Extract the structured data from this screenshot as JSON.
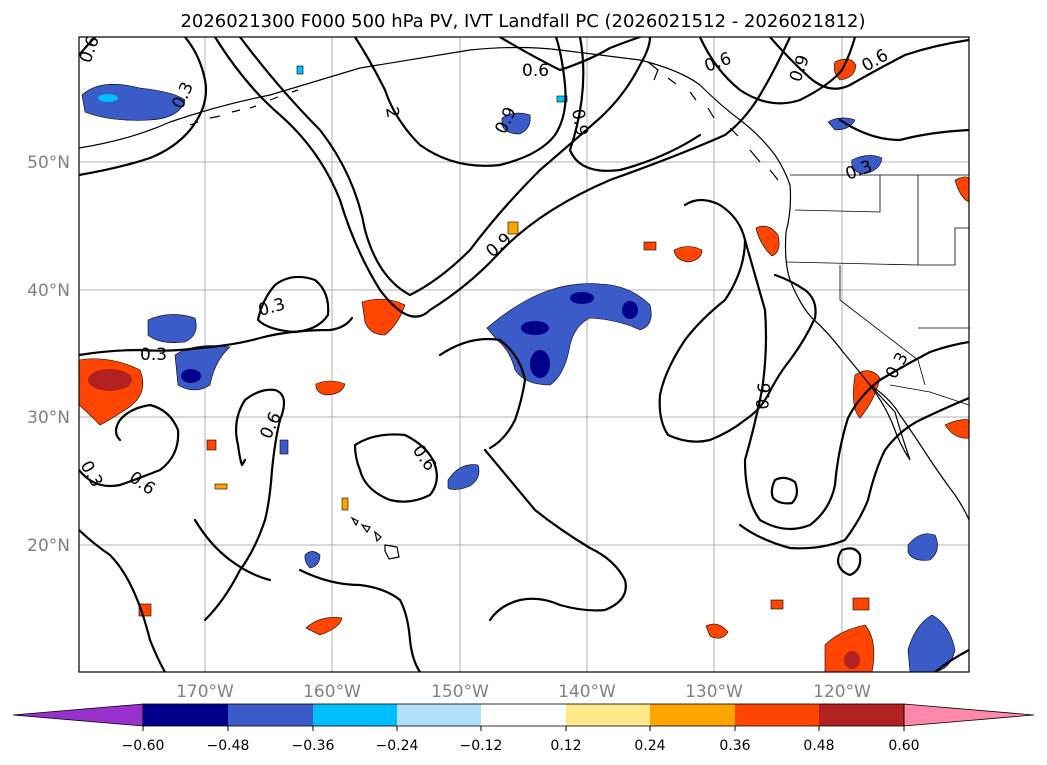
{
  "map": {
    "title": "2026021300 F000 500 hPa PV, IVT Landfall PC (2026021512 - 2026021812)",
    "lat_labels": [
      "50°N",
      "40°N",
      "30°N",
      "20°N"
    ],
    "lon_labels": [
      "170°W",
      "160°W",
      "150°W",
      "140°W",
      "130°W",
      "120°W"
    ],
    "contour_labels": [
      "0.6",
      "0.3",
      "0.6",
      "0.9",
      "0.6",
      "0.9",
      "2",
      "0.9",
      "0.9",
      "0.3",
      "0.3",
      "0.3",
      "0.6",
      "0.3",
      "0.6",
      "0.6",
      "0.6",
      "0.3",
      "0.6"
    ],
    "colors": {
      "neg_060": "#9932cc",
      "neg_048": "#00008b",
      "neg_036": "#3a5bc8",
      "neg_024": "#00bfff",
      "neg_012": "#b0e0f8",
      "zero": "#ffffff",
      "pos_012": "#ffe88a",
      "pos_024": "#ffa500",
      "pos_036": "#ff4500",
      "pos_048": "#b22222",
      "pos_060": "#ff88aa"
    }
  },
  "colorbar": {
    "ticks": [
      "−0.60",
      "−0.48",
      "−0.36",
      "−0.24",
      "−0.12",
      "0.12",
      "0.24",
      "0.36",
      "0.48",
      "0.60"
    ],
    "colors": [
      "#9932cc",
      "#00008b",
      "#3a5bc8",
      "#00bfff",
      "#b0e0f8",
      "#ffffff",
      "#ffe88a",
      "#ffa500",
      "#ff4500",
      "#b22222",
      "#ff88aa"
    ]
  }
}
